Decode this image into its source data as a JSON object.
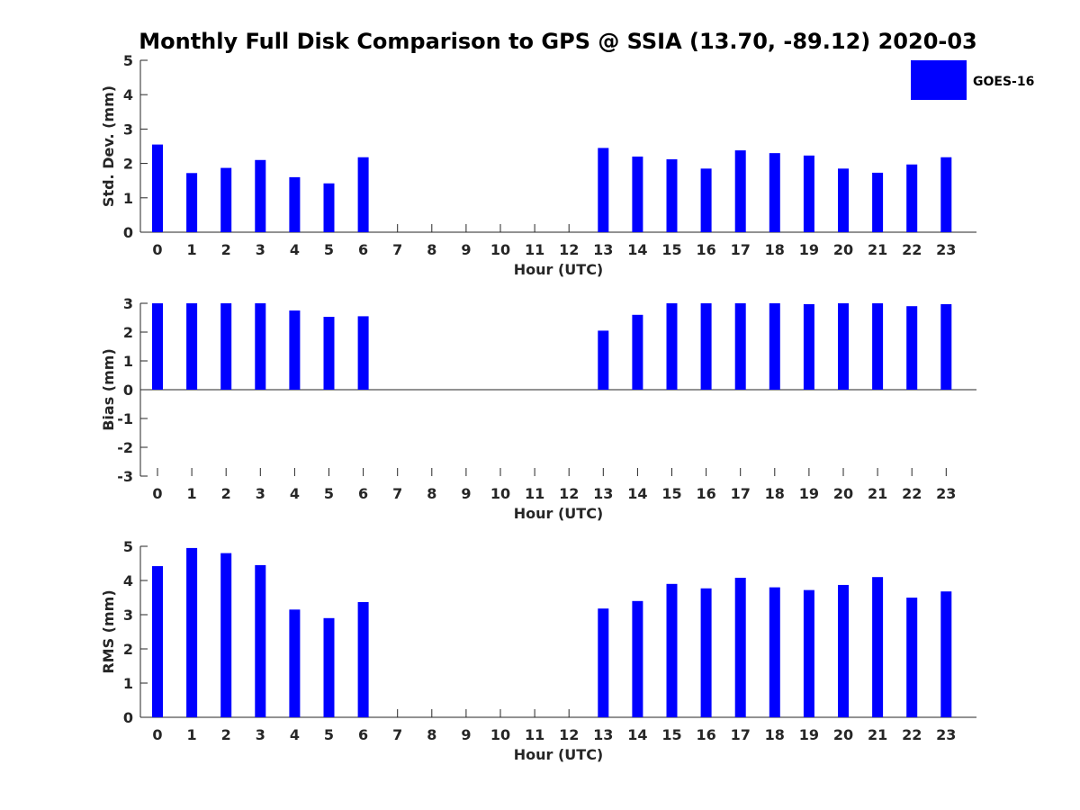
{
  "title": "Monthly Full Disk Comparison to GPS @ SSIA (13.70, -89.12) 2020-03",
  "legend": {
    "label": "GOES-16",
    "color": "#0000ff"
  },
  "chart_data": [
    {
      "type": "bar",
      "ylabel": "Std. Dev. (mm)",
      "xlabel": "Hour (UTC)",
      "ylim": [
        0,
        5
      ],
      "yticks": [
        "0",
        "1",
        "2",
        "3",
        "4",
        "5"
      ],
      "categories": [
        "0",
        "1",
        "2",
        "3",
        "4",
        "5",
        "6",
        "7",
        "8",
        "9",
        "10",
        "11",
        "12",
        "13",
        "14",
        "15",
        "16",
        "17",
        "18",
        "19",
        "20",
        "21",
        "22",
        "23"
      ],
      "series": [
        {
          "name": "GOES-16",
          "values": [
            2.55,
            1.72,
            1.87,
            2.1,
            1.6,
            1.42,
            2.18,
            null,
            null,
            null,
            null,
            null,
            null,
            2.45,
            2.2,
            2.12,
            1.85,
            2.38,
            2.3,
            2.23,
            1.85,
            1.73,
            1.97,
            2.18
          ]
        }
      ],
      "grid": false
    },
    {
      "type": "bar",
      "ylabel": "Bias (mm)",
      "xlabel": "Hour (UTC)",
      "ylim": [
        -3,
        3
      ],
      "yticks": [
        "-3",
        "-2",
        "-1",
        "0",
        "1",
        "2",
        "3"
      ],
      "categories": [
        "0",
        "1",
        "2",
        "3",
        "4",
        "5",
        "6",
        "7",
        "8",
        "9",
        "10",
        "11",
        "12",
        "13",
        "14",
        "15",
        "16",
        "17",
        "18",
        "19",
        "20",
        "21",
        "22",
        "23"
      ],
      "series": [
        {
          "name": "GOES-16",
          "values": [
            3.0,
            3.0,
            3.0,
            3.0,
            2.75,
            2.53,
            2.55,
            null,
            null,
            null,
            null,
            null,
            null,
            2.05,
            2.6,
            3.0,
            3.0,
            3.0,
            3.0,
            2.97,
            3.0,
            3.0,
            2.9,
            2.97
          ]
        }
      ],
      "grid": false
    },
    {
      "type": "bar",
      "ylabel": "RMS (mm)",
      "xlabel": "Hour (UTC)",
      "ylim": [
        0,
        5
      ],
      "yticks": [
        "0",
        "1",
        "2",
        "3",
        "4",
        "5"
      ],
      "categories": [
        "0",
        "1",
        "2",
        "3",
        "4",
        "5",
        "6",
        "7",
        "8",
        "9",
        "10",
        "11",
        "12",
        "13",
        "14",
        "15",
        "16",
        "17",
        "18",
        "19",
        "20",
        "21",
        "22",
        "23"
      ],
      "series": [
        {
          "name": "GOES-16",
          "values": [
            4.42,
            4.95,
            4.8,
            4.45,
            3.15,
            2.9,
            3.37,
            null,
            null,
            null,
            null,
            null,
            null,
            3.18,
            3.4,
            3.9,
            3.77,
            4.08,
            3.8,
            3.72,
            3.87,
            4.1,
            3.5,
            3.68
          ]
        }
      ],
      "grid": false
    }
  ]
}
